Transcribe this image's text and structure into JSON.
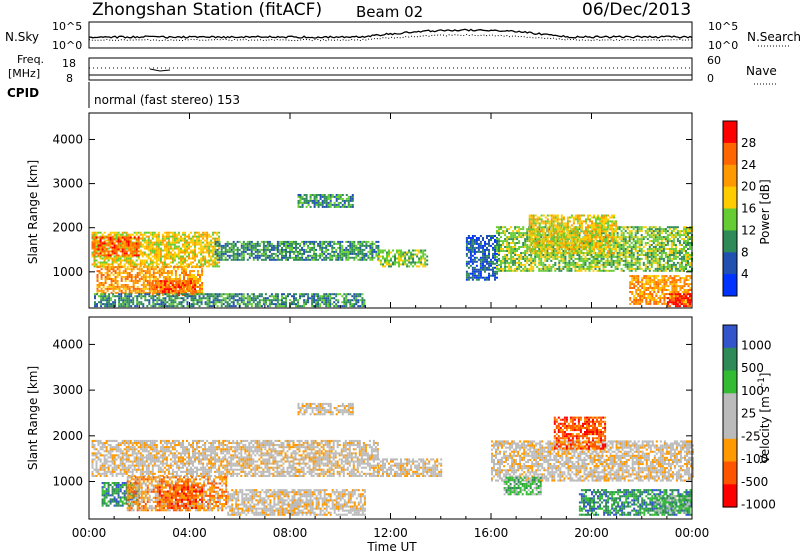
{
  "header": {
    "station": "Zhongshan Station (fitACF)",
    "beam": "Beam 02",
    "date": "06/Dec/2013"
  },
  "noise_panel": {
    "left_label": "N.Sky",
    "right_label": "N.Search",
    "left_ticks": [
      "10^5",
      "10^0"
    ],
    "right_ticks": [
      "10^5",
      "10^0"
    ]
  },
  "freq_panel": {
    "left_label_1": "Freq.",
    "left_label_2": "[MHz]",
    "left_ticks": [
      "18",
      "8"
    ],
    "right_label": "Nave",
    "right_ticks": [
      "60",
      "0"
    ]
  },
  "cpid": {
    "label": "CPID",
    "program": "normal (fast stereo) 153"
  },
  "colors": {
    "power": [
      "#0033ff",
      "#2050b0",
      "#2e8b57",
      "#66cc33",
      "#ffcc00",
      "#ff9900",
      "#ff6600",
      "#ff0000"
    ],
    "velocity": [
      "#ff0000",
      "#ff5500",
      "#ff9900",
      "#bbbbbb",
      "#bbbbbb",
      "#33bb33",
      "#2e8b57",
      "#3355cc"
    ]
  },
  "chart_data": [
    {
      "type": "heatmap",
      "name": "power",
      "ylabel": "Slant Range [km]",
      "xlabel": "",
      "x_ticks": [
        "00:00",
        "04:00",
        "08:00",
        "12:00",
        "16:00",
        "20:00",
        "00:00"
      ],
      "y_ticks": [
        "1000",
        "2000",
        "3000",
        "4000"
      ],
      "ylim": [
        180,
        4600
      ],
      "xlim_hours": [
        0,
        24
      ],
      "colorbar_label": "Power [dB]",
      "colorbar_ticks": [
        "4",
        "8",
        "12",
        "16",
        "20",
        "24",
        "28"
      ],
      "regions": [
        {
          "t0": 0.1,
          "t1": 5.2,
          "r0": 1100,
          "r1": 1900,
          "level": 4
        },
        {
          "t0": 0.1,
          "t1": 2.0,
          "r0": 1350,
          "r1": 1800,
          "level": 6
        },
        {
          "t0": 5.0,
          "t1": 11.5,
          "r0": 1250,
          "r1": 1700,
          "level": 2
        },
        {
          "t0": 11.5,
          "t1": 13.5,
          "r0": 1100,
          "r1": 1500,
          "level": 3
        },
        {
          "t0": 0.3,
          "t1": 4.5,
          "r0": 500,
          "r1": 1100,
          "level": 5
        },
        {
          "t0": 2.5,
          "t1": 4.2,
          "r0": 450,
          "r1": 800,
          "level": 6
        },
        {
          "t0": 0.2,
          "t1": 11.0,
          "r0": 200,
          "r1": 500,
          "level": 2
        },
        {
          "t0": 8.3,
          "t1": 10.5,
          "r0": 2450,
          "r1": 2750,
          "level": 2
        },
        {
          "t0": 15.0,
          "t1": 16.2,
          "r0": 800,
          "r1": 1800,
          "level": 1
        },
        {
          "t0": 16.2,
          "t1": 24.0,
          "r0": 1000,
          "r1": 2000,
          "level": 3
        },
        {
          "t0": 17.5,
          "t1": 21.0,
          "r0": 1400,
          "r1": 2300,
          "level": 4
        },
        {
          "t0": 21.5,
          "t1": 23.9,
          "r0": 250,
          "r1": 900,
          "level": 5
        },
        {
          "t0": 23.0,
          "t1": 23.9,
          "r0": 200,
          "r1": 500,
          "level": 7
        }
      ]
    },
    {
      "type": "heatmap",
      "name": "velocity",
      "ylabel": "Slant Range [km]",
      "xlabel": "Time UT",
      "x_ticks": [
        "00:00",
        "04:00",
        "08:00",
        "12:00",
        "16:00",
        "20:00",
        "00:00"
      ],
      "y_ticks": [
        "1000",
        "2000",
        "3000",
        "4000"
      ],
      "ylim": [
        180,
        4600
      ],
      "xlim_hours": [
        0,
        24
      ],
      "colorbar_label": "Velocity [m s^-1]",
      "colorbar_ticks": [
        "1000",
        "500",
        "100",
        "25",
        "-25",
        "-100",
        "-500",
        "-1000"
      ],
      "regions": [
        {
          "t0": 0.1,
          "t1": 11.5,
          "r0": 1100,
          "r1": 1900,
          "level": 3
        },
        {
          "t0": 11.5,
          "t1": 14.0,
          "r0": 1100,
          "r1": 1500,
          "level": 3
        },
        {
          "t0": 0.5,
          "t1": 2.0,
          "r0": 450,
          "r1": 950,
          "level": 6
        },
        {
          "t0": 1.5,
          "t1": 5.5,
          "r0": 350,
          "r1": 1100,
          "level": 2
        },
        {
          "t0": 2.7,
          "t1": 4.5,
          "r0": 400,
          "r1": 900,
          "level": 1
        },
        {
          "t0": 5.5,
          "t1": 11.0,
          "r0": 250,
          "r1": 800,
          "level": 3
        },
        {
          "t0": 8.3,
          "t1": 10.5,
          "r0": 2450,
          "r1": 2700,
          "level": 3
        },
        {
          "t0": 16.0,
          "t1": 24.0,
          "r0": 1000,
          "r1": 1900,
          "level": 3
        },
        {
          "t0": 18.5,
          "t1": 20.5,
          "r0": 1700,
          "r1": 2400,
          "level": 1
        },
        {
          "t0": 19.5,
          "t1": 23.9,
          "r0": 250,
          "r1": 800,
          "level": 6
        },
        {
          "t0": 22.5,
          "t1": 23.9,
          "r0": 300,
          "r1": 700,
          "level": 5
        },
        {
          "t0": 16.5,
          "t1": 18.0,
          "r0": 700,
          "r1": 1100,
          "level": 5
        }
      ]
    }
  ]
}
